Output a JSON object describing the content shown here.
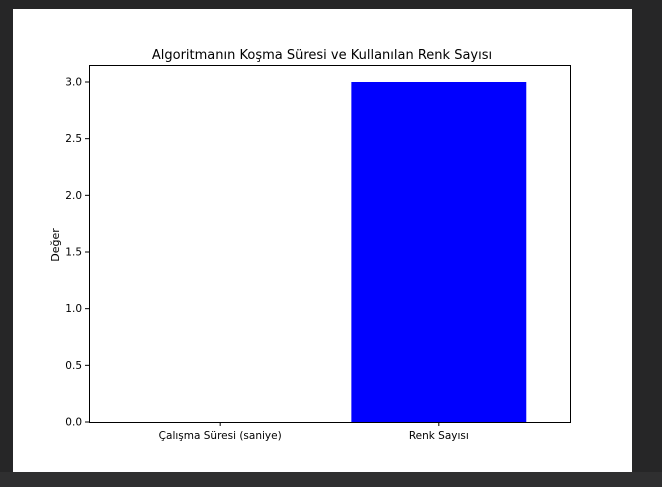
{
  "chart_data": {
    "type": "bar",
    "title": "Algoritmanın Koşma Süresi ve Kullanılan Renk Sayısı",
    "xlabel": "",
    "ylabel": "Değer",
    "categories": [
      "Çalışma Süresi (saniye)",
      "Renk Sayısı"
    ],
    "values": [
      0.0,
      3.0
    ],
    "bar_colors": [
      "#0000ff",
      "#0000ff"
    ],
    "ylim": [
      0,
      3.15
    ],
    "yticks": [
      "0.0",
      "0.5",
      "1.0",
      "1.5",
      "2.0",
      "2.5",
      "3.0"
    ],
    "grid": false,
    "legend": "none"
  }
}
